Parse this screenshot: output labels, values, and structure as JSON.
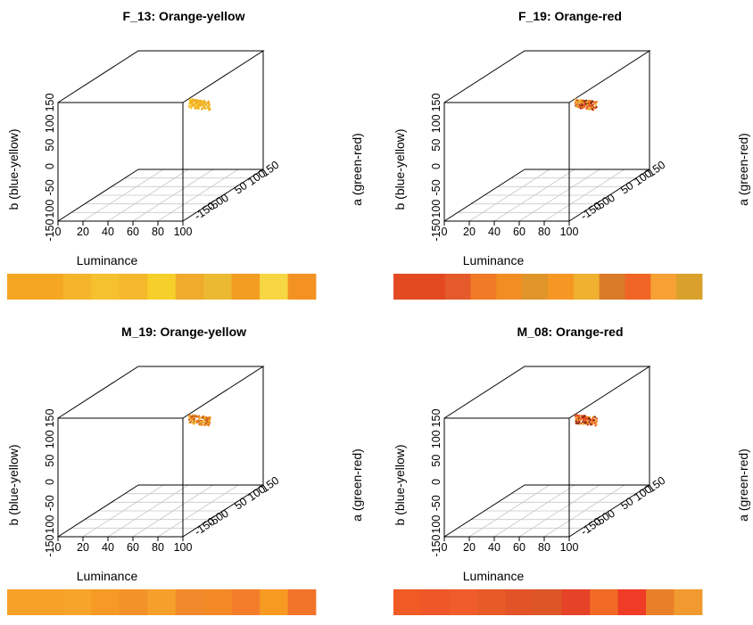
{
  "chart_data": [
    {
      "type": "scatter3d",
      "title": "F_13: Orange-yellow",
      "xlabel": "Luminance",
      "ylabel": "a (green-red)",
      "zlabel": "b (blue-yellow)",
      "xlim": [
        0,
        100
      ],
      "ylim": [
        -150,
        150
      ],
      "zlim": [
        -150,
        150
      ],
      "x_ticks": [
        "0",
        "20",
        "40",
        "60",
        "80",
        "100"
      ],
      "y_ticks": [
        "-150",
        "-50",
        "0",
        "50",
        "100",
        "150"
      ],
      "z_ticks": [
        "-150",
        "100",
        "-50",
        "0",
        "50",
        "100",
        "150"
      ],
      "point_colors": [
        "#f3b321",
        "#f6cf2a",
        "#f5a623",
        "#ecb932"
      ],
      "swatches": [
        "#f5a623",
        "#f5a623",
        "#f5b52a",
        "#f6c12e",
        "#f5b72c",
        "#f6cf2a",
        "#f0aa2c",
        "#ecb932",
        "#f29c22",
        "#f6d642",
        "#f39223"
      ]
    },
    {
      "type": "scatter3d",
      "title": "F_19: Orange-red",
      "xlabel": "Luminance",
      "ylabel": "a (green-red)",
      "zlabel": "b (blue-yellow)",
      "xlim": [
        0,
        100
      ],
      "ylim": [
        -150,
        150
      ],
      "zlim": [
        -150,
        150
      ],
      "x_ticks": [
        "0",
        "20",
        "40",
        "60",
        "80",
        "100"
      ],
      "y_ticks": [
        "-150",
        "-50",
        "0",
        "50",
        "100",
        "150"
      ],
      "z_ticks": [
        "-150",
        "100",
        "-50",
        "0",
        "50",
        "100",
        "150"
      ],
      "point_colors": [
        "#8a2a10",
        "#e34a22",
        "#f07a1e",
        "#f0b030"
      ],
      "swatches": [
        "#e34a22",
        "#e34a22",
        "#e55a2a",
        "#f07a26",
        "#f18e22",
        "#df9529",
        "#f69723",
        "#f0b030",
        "#d97a28",
        "#f06426",
        "#f7a034",
        "#d9a12c"
      ]
    },
    {
      "type": "scatter3d",
      "title": "M_19: Orange-yellow",
      "xlabel": "Luminance",
      "ylabel": "a (green-red)",
      "zlabel": "b (blue-yellow)",
      "xlim": [
        0,
        100
      ],
      "ylim": [
        -150,
        150
      ],
      "zlim": [
        -150,
        150
      ],
      "x_ticks": [
        "0",
        "20",
        "40",
        "60",
        "80",
        "100"
      ],
      "y_ticks": [
        "-150",
        "-50",
        "0",
        "50",
        "100",
        "150"
      ],
      "z_ticks": [
        "-150",
        "100",
        "-50",
        "0",
        "50",
        "100",
        "150"
      ],
      "point_colors": [
        "#c9601a",
        "#f59f25",
        "#f4bd36",
        "#e8801e"
      ],
      "swatches": [
        "#f6a128",
        "#f6a128",
        "#f7a42a",
        "#f49a25",
        "#f4922a",
        "#f5a02a",
        "#f28a2c",
        "#f48a26",
        "#f47d2c",
        "#f79a22",
        "#f2732a"
      ]
    },
    {
      "type": "scatter3d",
      "title": "M_08: Orange-red",
      "xlabel": "Luminance",
      "ylabel": "a (green-red)",
      "zlabel": "b (blue-yellow)",
      "xlim": [
        0,
        100
      ],
      "ylim": [
        -150,
        150
      ],
      "zlim": [
        -150,
        150
      ],
      "x_ticks": [
        "0",
        "20",
        "40",
        "60",
        "80",
        "100"
      ],
      "y_ticks": [
        "-150",
        "-50",
        "0",
        "50",
        "100",
        "150"
      ],
      "z_ticks": [
        "-150",
        "100",
        "-50",
        "0",
        "50",
        "100",
        "150"
      ],
      "point_colors": [
        "#8a2a10",
        "#e84a24",
        "#f07a22",
        "#f5a530"
      ],
      "swatches": [
        "#f05a24",
        "#ef5628",
        "#f05d2b",
        "#e85a26",
        "#e25428",
        "#dd5527",
        "#e54228",
        "#f06a26",
        "#ee3c26",
        "#e98027",
        "#f19a30"
      ]
    }
  ]
}
